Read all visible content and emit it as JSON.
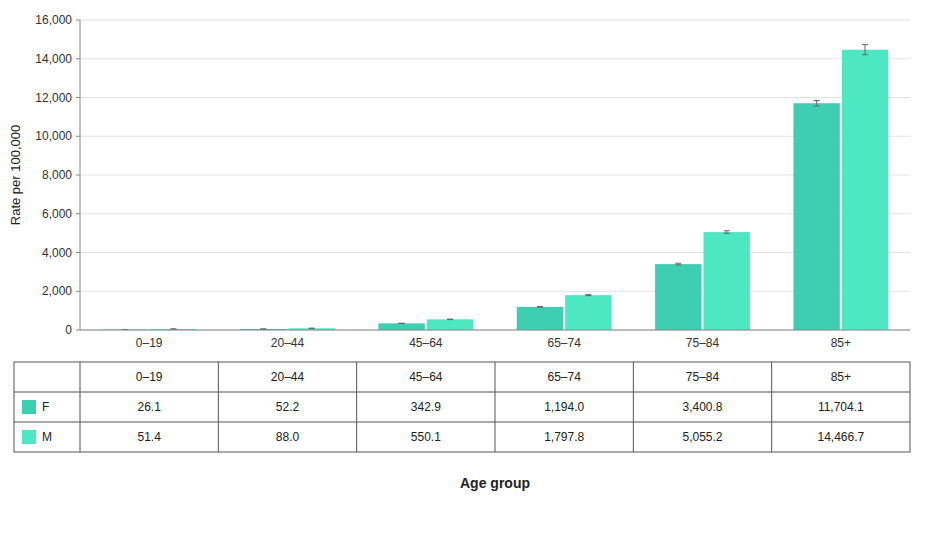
{
  "chart_data": {
    "type": "bar",
    "xlabel": "Age group",
    "ylabel": "Rate per 100,000",
    "categories": [
      "0–19",
      "20–44",
      "45–64",
      "65–74",
      "75–84",
      "85+"
    ],
    "series": [
      {
        "name": "F",
        "color": "#3ecfb2",
        "values": [
          26.1,
          52.2,
          342.9,
          1194.0,
          3400.8,
          11704.1
        ],
        "errors": [
          1.5,
          2.5,
          9.0,
          18.0,
          45.0,
          140.0
        ],
        "value_labels": [
          "26.1",
          "52.2",
          "342.9",
          "1,194.0",
          "3,400.8",
          "11,704.1"
        ]
      },
      {
        "name": "M",
        "color": "#4de8c2",
        "values": [
          51.4,
          88.0,
          550.1,
          1797.8,
          5055.2,
          14466.7
        ],
        "errors": [
          2.0,
          3.5,
          13.0,
          25.0,
          65.0,
          260.0
        ],
        "value_labels": [
          "51.4",
          "88.0",
          "550.1",
          "1,797.8",
          "5,055.2",
          "14,466.7"
        ]
      }
    ],
    "ylim": [
      0,
      16000
    ],
    "yticks": [
      0,
      {
        "value": 2000,
        "label": "2,000"
      },
      {
        "value": 4000,
        "label": "4,000"
      },
      {
        "value": 6000,
        "label": "6,000"
      },
      {
        "value": 8000,
        "label": "8,000"
      },
      {
        "value": 10000,
        "label": "10,000"
      },
      {
        "value": 12000,
        "label": "12,000"
      },
      {
        "value": 14000,
        "label": "14,000"
      },
      {
        "value": 16000,
        "label": "16,000"
      }
    ],
    "grid": true
  }
}
